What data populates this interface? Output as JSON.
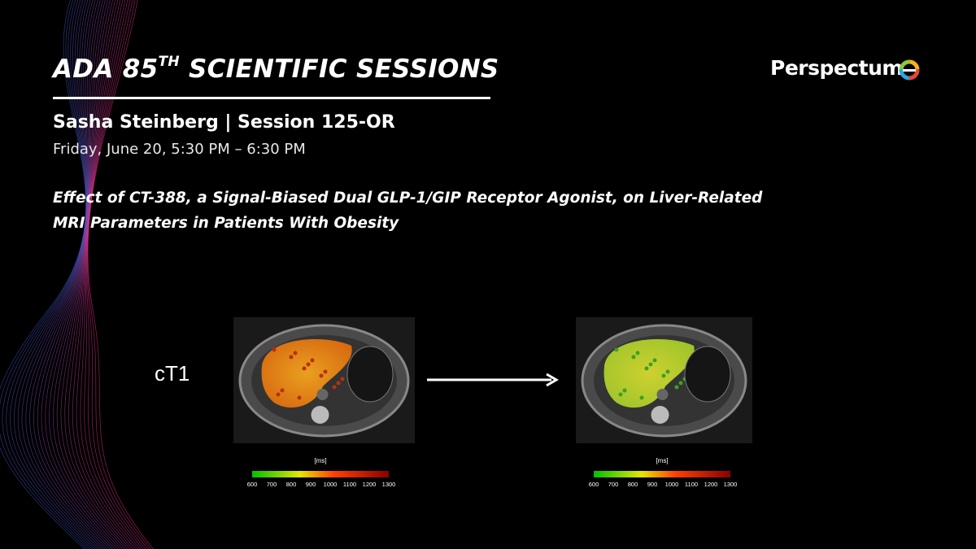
{
  "header": {
    "title": "ADA 85",
    "title_superscript": "TH",
    "title_rest": "SCIENTIFIC SESSIONS",
    "logo": "Perspectum"
  },
  "session": {
    "speaker": "Sasha Steinberg | Session 125-OR",
    "time": "Friday, June 20, 5:30 PM – 6:30 PM"
  },
  "abstract": {
    "title_lines": [
      "Effect of CT-388, a Signal-Biased Dual GLP-1/GIP Receptor Agonist, on Liver-Related",
      "MRI Parameters in Patients With Obesity"
    ]
  },
  "figure": {
    "label": "cT1",
    "panels": [
      {
        "colorbar": {
          "unit": "[ms]",
          "ticks": [
            600,
            700,
            800,
            900,
            1000,
            1100,
            1200,
            1300
          ]
        }
      },
      {
        "colorbar": {
          "unit": "[ms]",
          "ticks": [
            600,
            700,
            800,
            900,
            1000,
            1100,
            1200,
            1300
          ]
        }
      }
    ]
  }
}
